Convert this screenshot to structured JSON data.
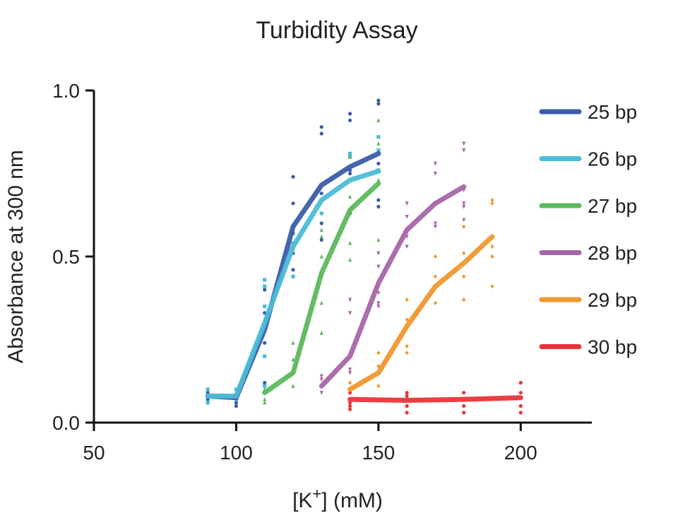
{
  "chart_data": {
    "type": "line",
    "title": "Turbidity Assay",
    "xlabel": "[K+] (mM)",
    "xlabel_main": "[K",
    "xlabel_sup": "+",
    "xlabel_tail": "] (mM)",
    "ylabel": "Absorbance at 300 nm",
    "xlim": [
      50,
      225
    ],
    "ylim": [
      0,
      1.0
    ],
    "xticks": [
      50,
      100,
      150,
      200
    ],
    "xtick_labels": [
      "50",
      "100",
      "150",
      "200"
    ],
    "yticks": [
      0,
      0.5,
      1.0
    ],
    "ytick_labels": [
      "0.0",
      "0.5",
      "1.0"
    ],
    "grid": false,
    "legend_position": "right",
    "series": [
      {
        "name": "25 bp",
        "color": "#3a5ca8",
        "marker": "circle",
        "x": [
          90,
          100,
          110,
          120,
          130,
          140,
          150
        ],
        "mean": [
          0.08,
          0.075,
          0.28,
          0.59,
          0.715,
          0.77,
          0.81
        ],
        "replicates": [
          [
            0.07,
            0.09,
            0.06
          ],
          [
            0.06,
            0.05,
            0.08
          ],
          [
            0.4,
            0.33,
            0.24,
            0.12
          ],
          [
            0.74,
            0.66,
            0.57,
            0.51,
            0.46
          ],
          [
            0.89,
            0.87,
            0.69,
            0.6,
            0.55
          ],
          [
            0.93,
            0.91,
            0.76,
            0.75,
            0.63
          ],
          [
            0.97,
            0.96,
            0.78,
            0.67,
            0.65
          ]
        ]
      },
      {
        "name": "26 bp",
        "color": "#4bbcd6",
        "marker": "square",
        "x": [
          90,
          100,
          110,
          120,
          130,
          140,
          150
        ],
        "mean": [
          0.08,
          0.08,
          0.3,
          0.53,
          0.67,
          0.73,
          0.757
        ],
        "replicates": [
          [
            0.1,
            0.06
          ],
          [
            0.1,
            0.07
          ],
          [
            0.43,
            0.41,
            0.35,
            0.2,
            0.11
          ],
          [
            0.54,
            0.44
          ],
          [
            0.63
          ],
          [
            0.81,
            0.8
          ],
          [
            0.86,
            0.82,
            0.76
          ]
        ]
      },
      {
        "name": "27 bp",
        "color": "#5cb85c",
        "marker": "triangle",
        "x": [
          110,
          120,
          130,
          140,
          150
        ],
        "mean": [
          0.09,
          0.15,
          0.45,
          0.64,
          0.72
        ],
        "replicates": [
          [
            0.1,
            0.07,
            0.06
          ],
          [
            0.24,
            0.19,
            0.11
          ],
          [
            0.58,
            0.56,
            0.5,
            0.36,
            0.27
          ],
          [
            0.8,
            0.68,
            0.54,
            0.49
          ],
          [
            0.91,
            0.84,
            0.73,
            0.55
          ]
        ]
      },
      {
        "name": "28 bp",
        "color": "#a865a8",
        "marker": "triangle-down",
        "x": [
          130,
          140,
          150,
          160,
          170,
          180
        ],
        "mean": [
          0.11,
          0.2,
          0.42,
          0.58,
          0.66,
          0.71
        ],
        "replicates": [
          [
            0.14,
            0.13,
            0.09
          ],
          [
            0.37,
            0.33,
            0.16,
            0.15
          ],
          [
            0.51,
            0.47,
            0.39,
            0.36,
            0.35
          ],
          [
            0.66,
            0.62,
            0.56,
            0.53
          ],
          [
            0.78,
            0.75,
            0.6,
            0.59
          ],
          [
            0.84,
            0.82,
            0.7,
            0.66,
            0.65,
            0.61
          ]
        ]
      },
      {
        "name": "29 bp",
        "color": "#f0962e",
        "marker": "diamond",
        "x": [
          140,
          150,
          160,
          170,
          180,
          190
        ],
        "mean": [
          0.1,
          0.15,
          0.29,
          0.41,
          0.48,
          0.56
        ],
        "replicates": [
          [
            0.12,
            0.09,
            0.06,
            0.04
          ],
          [
            0.21,
            0.17,
            0.11
          ],
          [
            0.37,
            0.31,
            0.23,
            0.21
          ],
          [
            0.5,
            0.44,
            0.36
          ],
          [
            0.59,
            0.51,
            0.44,
            0.37
          ],
          [
            0.67,
            0.66,
            0.53,
            0.5,
            0.41
          ]
        ]
      },
      {
        "name": "30 bp",
        "color": "#e8353a",
        "marker": "circle",
        "x": [
          140,
          160,
          180,
          200
        ],
        "mean": [
          0.07,
          0.067,
          0.07,
          0.075
        ],
        "replicates": [
          [
            0.09,
            0.06,
            0.05,
            0.04
          ],
          [
            0.09,
            0.08,
            0.05,
            0.03
          ],
          [
            0.09,
            0.05,
            0.03
          ],
          [
            0.12,
            0.09,
            0.05,
            0.03
          ]
        ]
      }
    ]
  }
}
